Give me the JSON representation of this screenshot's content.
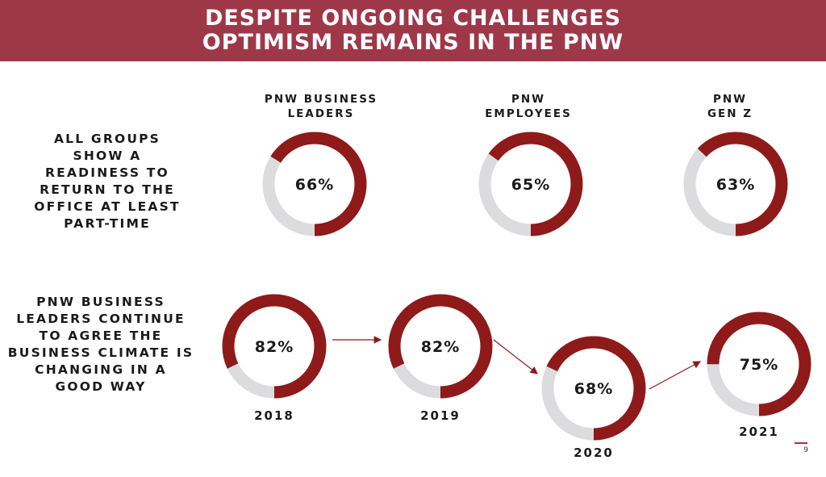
{
  "header": {
    "title_line1": "DESPITE ONGOING CHALLENGES",
    "title_line2": "OPTIMISM REMAINS IN THE PNW"
  },
  "row1": {
    "label_lines": [
      "ALL GROUPS",
      "SHOW A",
      "READINESS TO",
      "RETURN TO THE",
      "OFFICE AT LEAST",
      "PART-TIME"
    ]
  },
  "row2": {
    "label_lines": [
      "PNW BUSINESS",
      "LEADERS CONTINUE",
      "TO AGREE THE",
      "BUSINESS CLIMATE IS",
      "CHANGING IN A",
      "GOOD WAY"
    ]
  },
  "colors": {
    "accent": "#8f1a1a",
    "track": "#dcdcdf",
    "header_bg": "#9e3848"
  },
  "chart_data": [
    {
      "type": "donut",
      "title": "",
      "categories": [
        "PNW BUSINESS LEADERS",
        "PNW EMPLOYEES",
        "PNW GEN Z"
      ],
      "category_lines": [
        [
          "PNW BUSINESS",
          "LEADERS"
        ],
        [
          "PNW",
          "EMPLOYEES"
        ],
        [
          "PNW",
          "GEN Z"
        ]
      ],
      "values": [
        66,
        65,
        63
      ],
      "labels": [
        "66%",
        "65%",
        "63%"
      ]
    },
    {
      "type": "donut",
      "title": "",
      "categories": [
        "2018",
        "2019",
        "2020",
        "2021"
      ],
      "values": [
        82,
        82,
        68,
        75
      ],
      "labels": [
        "82%",
        "82%",
        "68%",
        "75%"
      ]
    }
  ],
  "page_number": "9"
}
